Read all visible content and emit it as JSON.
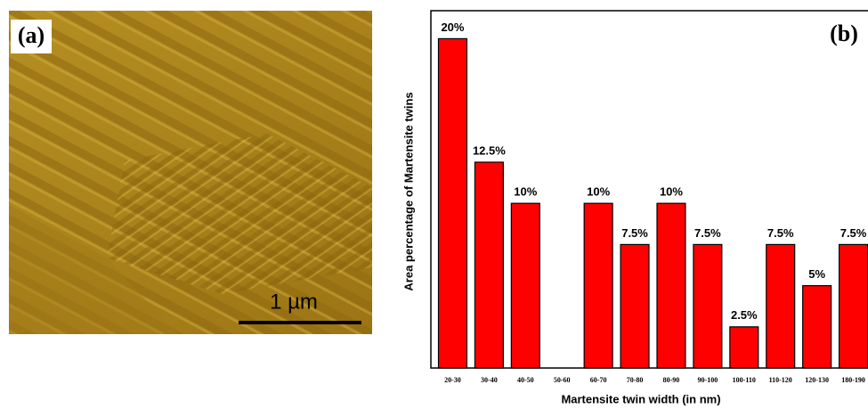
{
  "image": {
    "label": "(a)",
    "scale_bar": "1 µm"
  },
  "chart_data": {
    "type": "bar",
    "panel_label": "(b)",
    "x_label": "Martensite twin width (in nm)",
    "y_label": "Area percentage of Martensite twins",
    "categories": [
      "20-30",
      "30-40",
      "40-50",
      "50-60",
      "60-70",
      "70-80",
      "80-90",
      "90-100",
      "100-110",
      "110-120",
      "120-130",
      "180-190"
    ],
    "values": [
      20,
      12.5,
      10,
      0,
      10,
      7.5,
      10,
      7.5,
      2.5,
      7.5,
      5,
      7.5
    ],
    "value_labels": [
      "20%",
      "12.5%",
      "10%",
      null,
      "10%",
      "7.5%",
      "10%",
      "7.5%",
      "2.5%",
      "7.5%",
      "5%",
      "7.5%"
    ],
    "color": "#ff0000",
    "ylim": [
      0,
      21.7
    ]
  }
}
